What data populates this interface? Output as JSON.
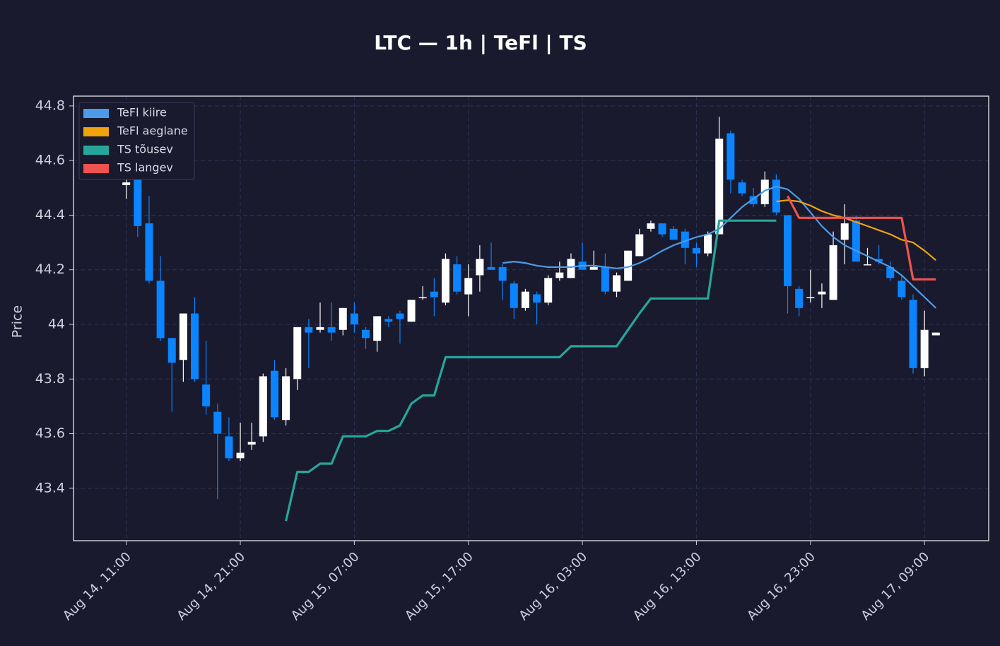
{
  "chart_data": {
    "type": "candlestick",
    "title": "LTC — 1h  |  TeFl  |  TS",
    "y_label": "Price",
    "x": [
      "Aug 14, 11:00",
      "Aug 14, 12:00",
      "Aug 14, 13:00",
      "Aug 14, 14:00",
      "Aug 14, 15:00",
      "Aug 14, 16:00",
      "Aug 14, 17:00",
      "Aug 14, 18:00",
      "Aug 14, 19:00",
      "Aug 14, 20:00",
      "Aug 14, 21:00",
      "Aug 14, 22:00",
      "Aug 14, 23:00",
      "Aug 15, 00:00",
      "Aug 15, 01:00",
      "Aug 15, 02:00",
      "Aug 15, 03:00",
      "Aug 15, 04:00",
      "Aug 15, 05:00",
      "Aug 15, 06:00",
      "Aug 15, 07:00",
      "Aug 15, 08:00",
      "Aug 15, 09:00",
      "Aug 15, 10:00",
      "Aug 15, 11:00",
      "Aug 15, 12:00",
      "Aug 15, 13:00",
      "Aug 15, 14:00",
      "Aug 15, 15:00",
      "Aug 15, 16:00",
      "Aug 15, 17:00",
      "Aug 15, 18:00",
      "Aug 15, 19:00",
      "Aug 15, 20:00",
      "Aug 15, 21:00",
      "Aug 15, 22:00",
      "Aug 15, 23:00",
      "Aug 16, 00:00",
      "Aug 16, 01:00",
      "Aug 16, 02:00",
      "Aug 16, 03:00",
      "Aug 16, 04:00",
      "Aug 16, 05:00",
      "Aug 16, 06:00",
      "Aug 16, 07:00",
      "Aug 16, 08:00",
      "Aug 16, 09:00",
      "Aug 16, 10:00",
      "Aug 16, 11:00",
      "Aug 16, 12:00",
      "Aug 16, 13:00",
      "Aug 16, 14:00",
      "Aug 16, 15:00",
      "Aug 16, 16:00",
      "Aug 16, 17:00",
      "Aug 16, 18:00",
      "Aug 16, 19:00",
      "Aug 16, 20:00",
      "Aug 16, 21:00",
      "Aug 16, 22:00",
      "Aug 16, 23:00",
      "Aug 17, 00:00",
      "Aug 17, 01:00",
      "Aug 17, 02:00",
      "Aug 17, 03:00",
      "Aug 17, 04:00",
      "Aug 17, 05:00",
      "Aug 17, 06:00",
      "Aug 17, 07:00",
      "Aug 17, 08:00",
      "Aug 17, 09:00",
      "Aug 17, 10:00"
    ],
    "open": [
      44.51,
      44.55,
      44.37,
      44.16,
      43.95,
      43.87,
      44.04,
      43.78,
      43.68,
      43.59,
      43.51,
      43.56,
      43.59,
      43.83,
      43.65,
      43.8,
      43.99,
      43.98,
      43.99,
      43.98,
      44.04,
      43.98,
      43.94,
      44.02,
      44.04,
      44.01,
      44.1,
      44.12,
      44.08,
      44.22,
      44.11,
      44.18,
      44.21,
      44.21,
      44.15,
      44.06,
      44.11,
      44.08,
      44.17,
      44.17,
      44.23,
      44.2,
      44.21,
      44.12,
      44.16,
      44.25,
      44.35,
      44.37,
      44.35,
      44.34,
      44.28,
      44.26,
      44.33,
      44.7,
      44.52,
      44.47,
      44.44,
      44.53,
      44.4,
      44.13,
      44.1,
      44.11,
      44.09,
      44.31,
      44.38,
      44.22,
      44.24,
      44.21,
      44.16,
      44.09,
      43.84,
      43.96
    ],
    "high": [
      44.56,
      44.58,
      44.47,
      44.25,
      43.95,
      44.04,
      44.1,
      43.94,
      43.71,
      43.66,
      43.64,
      43.64,
      43.82,
      43.87,
      43.84,
      43.99,
      44.02,
      44.08,
      44.08,
      44.06,
      44.08,
      43.99,
      44.03,
      44.03,
      44.05,
      44.09,
      44.14,
      44.17,
      44.26,
      44.25,
      44.22,
      44.29,
      44.3,
      44.22,
      44.16,
      44.13,
      44.12,
      44.18,
      44.23,
      44.26,
      44.3,
      44.27,
      44.26,
      44.19,
      44.27,
      44.35,
      44.38,
      44.37,
      44.36,
      44.35,
      44.3,
      44.34,
      44.76,
      44.71,
      44.53,
      44.5,
      44.56,
      44.55,
      44.4,
      44.14,
      44.2,
      44.15,
      44.34,
      44.44,
      44.4,
      44.28,
      44.29,
      44.23,
      44.18,
      44.11,
      44.05,
      43.97
    ],
    "low": [
      44.46,
      44.32,
      44.15,
      43.94,
      43.68,
      43.79,
      43.79,
      43.67,
      43.36,
      43.5,
      43.5,
      43.54,
      43.57,
      43.65,
      43.63,
      43.76,
      43.84,
      43.97,
      43.94,
      43.96,
      43.97,
      43.91,
      43.9,
      43.99,
      43.93,
      44.01,
      44.09,
      44.03,
      44.07,
      44.11,
      44.03,
      44.12,
      44.2,
      44.09,
      44.02,
      44.05,
      44.0,
      44.07,
      44.16,
      44.17,
      44.2,
      44.2,
      44.11,
      44.1,
      44.16,
      44.25,
      44.34,
      44.32,
      44.31,
      44.22,
      44.21,
      44.25,
      44.33,
      44.48,
      44.47,
      44.43,
      44.43,
      44.4,
      44.04,
      44.03,
      44.08,
      44.06,
      44.09,
      44.22,
      44.23,
      44.22,
      44.22,
      44.16,
      44.09,
      43.82,
      43.81,
      43.96
    ],
    "close": [
      44.52,
      44.36,
      44.16,
      43.95,
      43.86,
      44.04,
      43.8,
      43.7,
      43.6,
      43.51,
      43.53,
      43.57,
      43.81,
      43.66,
      43.81,
      43.99,
      43.97,
      43.99,
      43.97,
      44.06,
      44.0,
      43.95,
      44.03,
      44.01,
      44.02,
      44.09,
      44.1,
      44.1,
      44.24,
      44.12,
      44.17,
      44.24,
      44.2,
      44.16,
      44.06,
      44.12,
      44.08,
      44.17,
      44.19,
      44.24,
      44.2,
      44.21,
      44.12,
      44.18,
      44.27,
      44.33,
      44.37,
      44.33,
      44.31,
      44.28,
      44.26,
      44.33,
      44.68,
      44.53,
      44.48,
      44.44,
      44.53,
      44.41,
      44.14,
      44.06,
      44.1,
      44.12,
      44.29,
      44.37,
      44.23,
      44.22,
      44.23,
      44.17,
      44.1,
      43.84,
      43.98,
      43.97
    ],
    "up_color": "#ffffff",
    "down_color": "#0a84ff",
    "series": [
      {
        "name": "TeFl kiire",
        "color": "#4c9be8",
        "values": [
          null,
          null,
          null,
          null,
          null,
          null,
          null,
          null,
          null,
          null,
          null,
          null,
          null,
          null,
          null,
          null,
          null,
          null,
          null,
          null,
          null,
          null,
          null,
          null,
          null,
          null,
          null,
          null,
          null,
          null,
          null,
          null,
          null,
          44.225,
          44.23,
          44.225,
          44.215,
          44.21,
          44.21,
          44.21,
          44.215,
          44.215,
          44.21,
          44.205,
          44.21,
          44.225,
          44.245,
          44.27,
          44.29,
          44.305,
          44.32,
          44.33,
          44.35,
          44.39,
          44.43,
          44.46,
          44.49,
          44.505,
          44.495,
          44.46,
          44.41,
          44.36,
          44.32,
          44.29,
          44.27,
          44.25,
          44.23,
          44.21,
          44.18,
          44.14,
          44.1,
          44.06
        ]
      },
      {
        "name": "TeFl aeglane",
        "color": "#f0a30a",
        "values": [
          null,
          null,
          null,
          null,
          null,
          null,
          null,
          null,
          null,
          null,
          null,
          null,
          null,
          null,
          null,
          null,
          null,
          null,
          null,
          null,
          null,
          null,
          null,
          null,
          null,
          null,
          null,
          null,
          null,
          null,
          null,
          null,
          null,
          null,
          null,
          null,
          null,
          null,
          null,
          null,
          null,
          null,
          null,
          null,
          null,
          null,
          null,
          null,
          null,
          null,
          null,
          null,
          null,
          null,
          null,
          null,
          null,
          44.45,
          44.455,
          44.45,
          44.435,
          44.415,
          44.4,
          44.39,
          44.375,
          44.36,
          44.345,
          44.33,
          44.31,
          44.3,
          44.27,
          44.235
        ]
      },
      {
        "name": "TS tõusev",
        "color": "#26a69a",
        "values": [
          null,
          null,
          null,
          null,
          null,
          null,
          null,
          null,
          null,
          null,
          null,
          null,
          null,
          null,
          43.28,
          43.46,
          43.46,
          43.49,
          43.49,
          43.59,
          43.59,
          43.59,
          43.61,
          43.61,
          43.63,
          43.71,
          43.74,
          43.74,
          43.88,
          43.88,
          43.88,
          43.88,
          43.88,
          43.88,
          43.88,
          43.88,
          43.88,
          43.88,
          43.88,
          43.92,
          43.92,
          43.92,
          43.92,
          43.92,
          43.98,
          44.04,
          44.095,
          44.095,
          44.095,
          44.095,
          44.095,
          44.095,
          44.38,
          44.38,
          44.38,
          44.38,
          44.38,
          44.38,
          null,
          null,
          null,
          null,
          null,
          null,
          null,
          null,
          null,
          null,
          null,
          null,
          null,
          null
        ]
      },
      {
        "name": "TS langev",
        "color": "#ef5350",
        "values": [
          null,
          null,
          null,
          null,
          null,
          null,
          null,
          null,
          null,
          null,
          null,
          null,
          null,
          null,
          null,
          null,
          null,
          null,
          null,
          null,
          null,
          null,
          null,
          null,
          null,
          null,
          null,
          null,
          null,
          null,
          null,
          null,
          null,
          null,
          null,
          null,
          null,
          null,
          null,
          null,
          null,
          null,
          null,
          null,
          null,
          null,
          null,
          null,
          null,
          null,
          null,
          null,
          null,
          null,
          null,
          null,
          null,
          null,
          44.47,
          44.39,
          44.39,
          44.39,
          44.39,
          44.39,
          44.39,
          44.39,
          44.39,
          44.39,
          44.39,
          44.165,
          44.165,
          44.165
        ]
      }
    ],
    "ylim": [
      43.208,
      44.836
    ],
    "yticks": [
      43.4,
      43.6,
      43.8,
      44.0,
      44.2,
      44.4,
      44.6,
      44.8
    ],
    "xticks": [
      "Aug 14, 11:00",
      "Aug 14, 21:00",
      "Aug 15, 07:00",
      "Aug 15, 17:00",
      "Aug 16, 03:00",
      "Aug 16, 13:00",
      "Aug 16, 23:00",
      "Aug 17, 09:00"
    ],
    "grid": true,
    "legend": "upper left"
  }
}
